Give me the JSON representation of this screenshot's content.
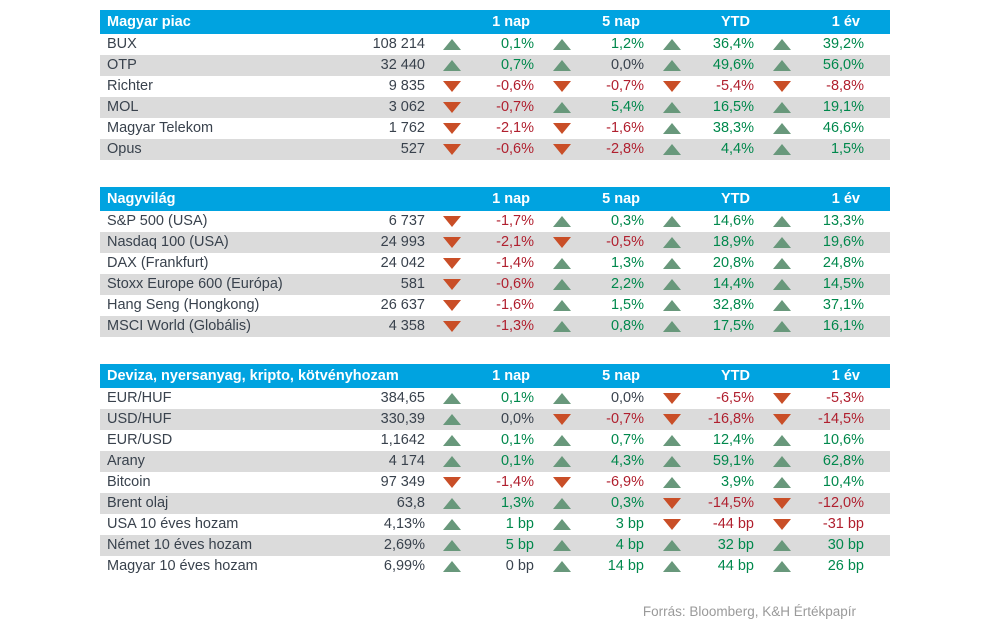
{
  "colors": {
    "header_blue": "#00A3E0",
    "row_stripe": "#DBDBDB",
    "body_text": "#39424D",
    "positive_text": "#00884C",
    "negative_text": "#B01F2E",
    "arrow_up": "#68987B",
    "arrow_down": "#C94E27",
    "footer_gray": "#9A9A9A"
  },
  "footer": {
    "source": "Forrás: Bloomberg, K&H Értékpapír"
  },
  "chart_data": [
    {
      "type": "table",
      "title": "Magyar piac",
      "columns": [
        "1 nap",
        "5 nap",
        "YTD",
        "1 év"
      ],
      "rows": [
        {
          "name": "BUX",
          "value": "108 214",
          "changes": [
            {
              "arrow": "up",
              "text": "0,1%",
              "tone": "pos"
            },
            {
              "arrow": "up",
              "text": "1,2%",
              "tone": "pos"
            },
            {
              "arrow": "up",
              "text": "36,4%",
              "tone": "pos"
            },
            {
              "arrow": "up",
              "text": "39,2%",
              "tone": "pos"
            }
          ]
        },
        {
          "name": "OTP",
          "value": "32 440",
          "changes": [
            {
              "arrow": "up",
              "text": "0,7%",
              "tone": "pos"
            },
            {
              "arrow": "up",
              "text": "0,0%",
              "tone": "neutral"
            },
            {
              "arrow": "up",
              "text": "49,6%",
              "tone": "pos"
            },
            {
              "arrow": "up",
              "text": "56,0%",
              "tone": "pos"
            }
          ]
        },
        {
          "name": "Richter",
          "value": "9 835",
          "changes": [
            {
              "arrow": "down",
              "text": "-0,6%",
              "tone": "neg"
            },
            {
              "arrow": "down",
              "text": "-0,7%",
              "tone": "neg"
            },
            {
              "arrow": "down",
              "text": "-5,4%",
              "tone": "neg"
            },
            {
              "arrow": "down",
              "text": "-8,8%",
              "tone": "neg"
            }
          ]
        },
        {
          "name": "MOL",
          "value": "3 062",
          "changes": [
            {
              "arrow": "down",
              "text": "-0,7%",
              "tone": "neg"
            },
            {
              "arrow": "up",
              "text": "5,4%",
              "tone": "pos"
            },
            {
              "arrow": "up",
              "text": "16,5%",
              "tone": "pos"
            },
            {
              "arrow": "up",
              "text": "19,1%",
              "tone": "pos"
            }
          ]
        },
        {
          "name": "Magyar Telekom",
          "value": "1 762",
          "changes": [
            {
              "arrow": "down",
              "text": "-2,1%",
              "tone": "neg"
            },
            {
              "arrow": "down",
              "text": "-1,6%",
              "tone": "neg"
            },
            {
              "arrow": "up",
              "text": "38,3%",
              "tone": "pos"
            },
            {
              "arrow": "up",
              "text": "46,6%",
              "tone": "pos"
            }
          ]
        },
        {
          "name": "Opus",
          "value": "527",
          "changes": [
            {
              "arrow": "down",
              "text": "-0,6%",
              "tone": "neg"
            },
            {
              "arrow": "down",
              "text": "-2,8%",
              "tone": "neg"
            },
            {
              "arrow": "up",
              "text": "4,4%",
              "tone": "pos"
            },
            {
              "arrow": "up",
              "text": "1,5%",
              "tone": "pos"
            }
          ]
        }
      ]
    },
    {
      "type": "table",
      "title": "Nagyvilág",
      "columns": [
        "1 nap",
        "5 nap",
        "YTD",
        "1 év"
      ],
      "rows": [
        {
          "name": "S&P 500 (USA)",
          "value": "6 737",
          "changes": [
            {
              "arrow": "down",
              "text": "-1,7%",
              "tone": "neg"
            },
            {
              "arrow": "up",
              "text": "0,3%",
              "tone": "pos"
            },
            {
              "arrow": "up",
              "text": "14,6%",
              "tone": "pos"
            },
            {
              "arrow": "up",
              "text": "13,3%",
              "tone": "pos"
            }
          ]
        },
        {
          "name": "Nasdaq 100 (USA)",
          "value": "24 993",
          "changes": [
            {
              "arrow": "down",
              "text": "-2,1%",
              "tone": "neg"
            },
            {
              "arrow": "down",
              "text": "-0,5%",
              "tone": "neg"
            },
            {
              "arrow": "up",
              "text": "18,9%",
              "tone": "pos"
            },
            {
              "arrow": "up",
              "text": "19,6%",
              "tone": "pos"
            }
          ]
        },
        {
          "name": "DAX (Frankfurt)",
          "value": "24 042",
          "changes": [
            {
              "arrow": "down",
              "text": "-1,4%",
              "tone": "neg"
            },
            {
              "arrow": "up",
              "text": "1,3%",
              "tone": "pos"
            },
            {
              "arrow": "up",
              "text": "20,8%",
              "tone": "pos"
            },
            {
              "arrow": "up",
              "text": "24,8%",
              "tone": "pos"
            }
          ]
        },
        {
          "name": "Stoxx Europe 600 (Európa)",
          "value": "581",
          "changes": [
            {
              "arrow": "down",
              "text": "-0,6%",
              "tone": "neg"
            },
            {
              "arrow": "up",
              "text": "2,2%",
              "tone": "pos"
            },
            {
              "arrow": "up",
              "text": "14,4%",
              "tone": "pos"
            },
            {
              "arrow": "up",
              "text": "14,5%",
              "tone": "pos"
            }
          ]
        },
        {
          "name": "Hang Seng (Hongkong)",
          "value": "26 637",
          "changes": [
            {
              "arrow": "down",
              "text": "-1,6%",
              "tone": "neg"
            },
            {
              "arrow": "up",
              "text": "1,5%",
              "tone": "pos"
            },
            {
              "arrow": "up",
              "text": "32,8%",
              "tone": "pos"
            },
            {
              "arrow": "up",
              "text": "37,1%",
              "tone": "pos"
            }
          ]
        },
        {
          "name": "MSCI World (Globális)",
          "value": "4 358",
          "changes": [
            {
              "arrow": "down",
              "text": "-1,3%",
              "tone": "neg"
            },
            {
              "arrow": "up",
              "text": "0,8%",
              "tone": "pos"
            },
            {
              "arrow": "up",
              "text": "17,5%",
              "tone": "pos"
            },
            {
              "arrow": "up",
              "text": "16,1%",
              "tone": "pos"
            }
          ]
        }
      ]
    },
    {
      "type": "table",
      "title": "Deviza, nyersanyag, kripto, kötvényhozam",
      "columns": [
        "1 nap",
        "5 nap",
        "YTD",
        "1 év"
      ],
      "rows": [
        {
          "name": "EUR/HUF",
          "value": "384,65",
          "changes": [
            {
              "arrow": "up",
              "text": "0,1%",
              "tone": "pos"
            },
            {
              "arrow": "up",
              "text": "0,0%",
              "tone": "neutral"
            },
            {
              "arrow": "down",
              "text": "-6,5%",
              "tone": "neg"
            },
            {
              "arrow": "down",
              "text": "-5,3%",
              "tone": "neg"
            }
          ]
        },
        {
          "name": "USD/HUF",
          "value": "330,39",
          "changes": [
            {
              "arrow": "up",
              "text": "0,0%",
              "tone": "neutral"
            },
            {
              "arrow": "down",
              "text": "-0,7%",
              "tone": "neg"
            },
            {
              "arrow": "down",
              "text": "-16,8%",
              "tone": "neg"
            },
            {
              "arrow": "down",
              "text": "-14,5%",
              "tone": "neg"
            }
          ]
        },
        {
          "name": "EUR/USD",
          "value": "1,1642",
          "changes": [
            {
              "arrow": "up",
              "text": "0,1%",
              "tone": "pos"
            },
            {
              "arrow": "up",
              "text": "0,7%",
              "tone": "pos"
            },
            {
              "arrow": "up",
              "text": "12,4%",
              "tone": "pos"
            },
            {
              "arrow": "up",
              "text": "10,6%",
              "tone": "pos"
            }
          ]
        },
        {
          "name": "Arany",
          "value": "4 174",
          "changes": [
            {
              "arrow": "up",
              "text": "0,1%",
              "tone": "pos"
            },
            {
              "arrow": "up",
              "text": "4,3%",
              "tone": "pos"
            },
            {
              "arrow": "up",
              "text": "59,1%",
              "tone": "pos"
            },
            {
              "arrow": "up",
              "text": "62,8%",
              "tone": "pos"
            }
          ]
        },
        {
          "name": "Bitcoin",
          "value": "97 349",
          "changes": [
            {
              "arrow": "down",
              "text": "-1,4%",
              "tone": "neg"
            },
            {
              "arrow": "down",
              "text": "-6,9%",
              "tone": "neg"
            },
            {
              "arrow": "up",
              "text": "3,9%",
              "tone": "pos"
            },
            {
              "arrow": "up",
              "text": "10,4%",
              "tone": "pos"
            }
          ]
        },
        {
          "name": "Brent olaj",
          "value": "63,8",
          "changes": [
            {
              "arrow": "up",
              "text": "1,3%",
              "tone": "pos"
            },
            {
              "arrow": "up",
              "text": "0,3%",
              "tone": "pos"
            },
            {
              "arrow": "down",
              "text": "-14,5%",
              "tone": "neg"
            },
            {
              "arrow": "down",
              "text": "-12,0%",
              "tone": "neg"
            }
          ]
        },
        {
          "name": "USA 10 éves hozam",
          "value": "4,13%",
          "changes": [
            {
              "arrow": "up",
              "text": "1 bp",
              "tone": "pos"
            },
            {
              "arrow": "up",
              "text": "3 bp",
              "tone": "pos"
            },
            {
              "arrow": "down",
              "text": "-44 bp",
              "tone": "neg"
            },
            {
              "arrow": "down",
              "text": "-31 bp",
              "tone": "neg"
            }
          ]
        },
        {
          "name": "Német 10 éves hozam",
          "value": "2,69%",
          "changes": [
            {
              "arrow": "up",
              "text": "5 bp",
              "tone": "pos"
            },
            {
              "arrow": "up",
              "text": "4 bp",
              "tone": "pos"
            },
            {
              "arrow": "up",
              "text": "32 bp",
              "tone": "pos"
            },
            {
              "arrow": "up",
              "text": "30 bp",
              "tone": "pos"
            }
          ]
        },
        {
          "name": "Magyar 10 éves hozam",
          "value": "6,99%",
          "changes": [
            {
              "arrow": "up",
              "text": "0 bp",
              "tone": "neutral"
            },
            {
              "arrow": "up",
              "text": "14 bp",
              "tone": "pos"
            },
            {
              "arrow": "up",
              "text": "44 bp",
              "tone": "pos"
            },
            {
              "arrow": "up",
              "text": "26 bp",
              "tone": "pos"
            }
          ]
        }
      ]
    }
  ]
}
